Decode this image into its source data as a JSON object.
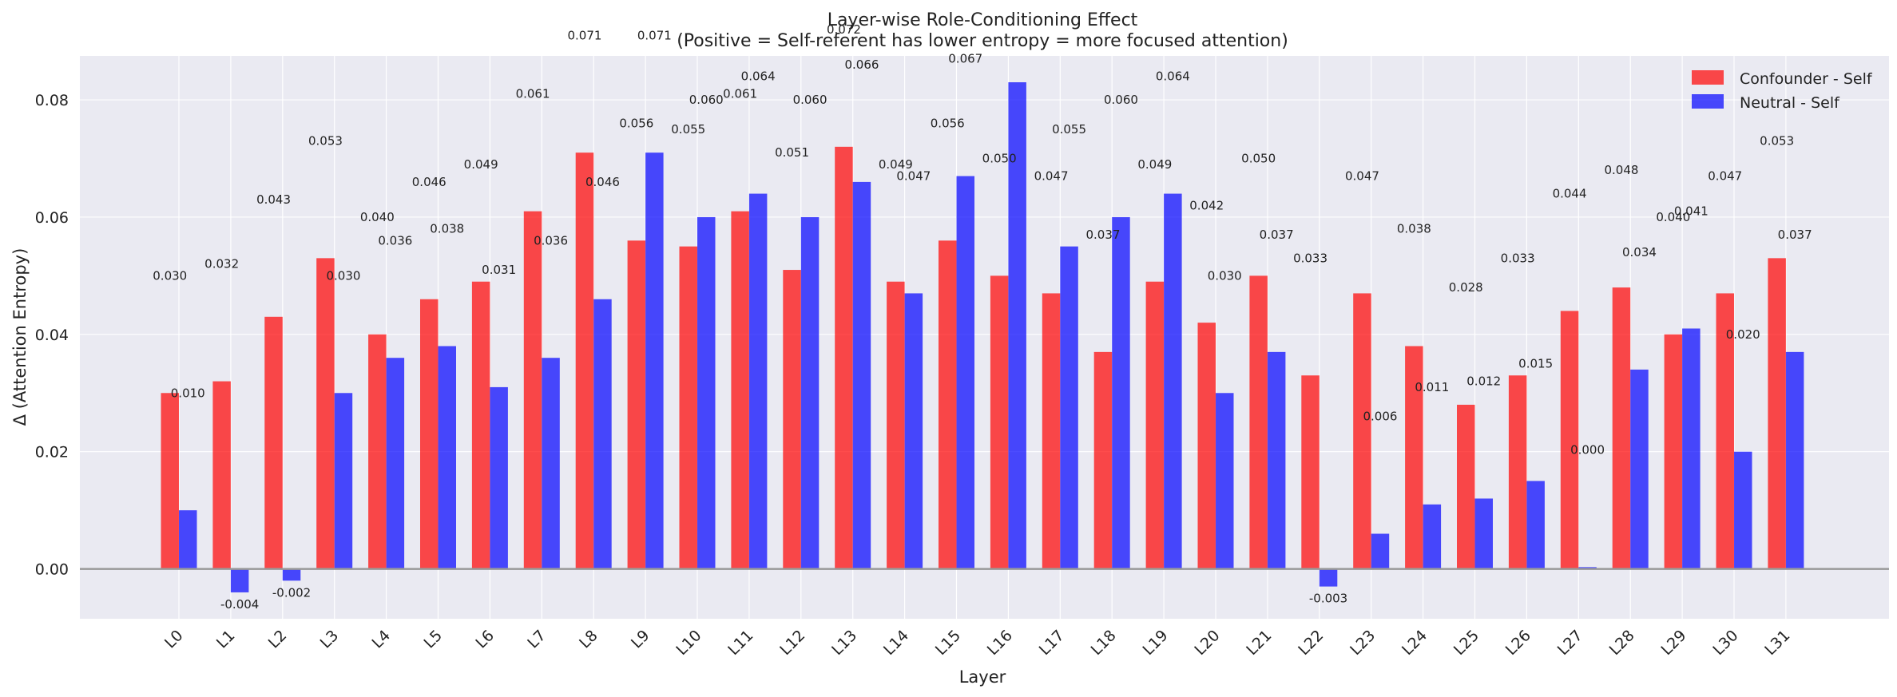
{
  "chart_data": {
    "type": "bar",
    "title": "Layer-wise Role-Conditioning Effect",
    "subtitle": "(Positive = Self-referent has lower entropy = more focused attention)",
    "xlabel": "Layer",
    "ylabel": "Δ (Attention Entropy)",
    "categories": [
      "L0",
      "L1",
      "L2",
      "L3",
      "L4",
      "L5",
      "L6",
      "L7",
      "L8",
      "L9",
      "L10",
      "L11",
      "L12",
      "L13",
      "L14",
      "L15",
      "L16",
      "L17",
      "L18",
      "L19",
      "L20",
      "L21",
      "L22",
      "L23",
      "L24",
      "L25",
      "L26",
      "L27",
      "L28",
      "L29",
      "L30",
      "L31"
    ],
    "series": [
      {
        "name": "Confounder - Self",
        "color": "#ff0000",
        "values": [
          0.03,
          0.032,
          0.043,
          0.053,
          0.04,
          0.046,
          0.049,
          0.061,
          0.071,
          0.056,
          0.055,
          0.061,
          0.051,
          0.072,
          0.049,
          0.056,
          0.05,
          0.047,
          0.037,
          0.049,
          0.042,
          0.05,
          0.033,
          0.047,
          0.038,
          0.028,
          0.033,
          0.044,
          0.048,
          0.04,
          0.047,
          0.053
        ],
        "labels": [
          "0.030",
          "0.032",
          "0.043",
          "0.053",
          "0.040",
          "0.046",
          "0.049",
          "0.061",
          "0.071",
          "0.056",
          "0.055",
          "0.061",
          "0.051",
          "0.072",
          "0.049",
          "0.056",
          "0.050",
          "0.047",
          "0.037",
          "0.049",
          "0.042",
          "0.050",
          "0.033",
          "0.047",
          "0.038",
          "0.028",
          "0.033",
          "0.044",
          "0.048",
          "0.040",
          "0.047",
          "0.053"
        ]
      },
      {
        "name": "Neutral - Self",
        "color": "#0000ff",
        "values": [
          0.01,
          -0.004,
          -0.002,
          0.03,
          0.036,
          0.038,
          0.031,
          0.036,
          0.046,
          0.071,
          0.06,
          0.064,
          0.06,
          0.066,
          0.047,
          0.067,
          0.083,
          0.055,
          0.06,
          0.064,
          0.03,
          0.037,
          -0.003,
          0.006,
          0.011,
          0.012,
          0.015,
          0.0003,
          0.034,
          0.041,
          0.02,
          0.037
        ],
        "labels": [
          "0.010",
          "-0.004",
          "-0.002",
          "0.030",
          "0.036",
          "0.038",
          "0.031",
          "0.036",
          "0.046",
          "0.071",
          "0.060",
          "0.064",
          "0.060",
          "0.066",
          "0.047",
          "0.067",
          "0.083",
          "0.055",
          "0.060",
          "0.064",
          "0.030",
          "0.037",
          "-0.003",
          "0.006",
          "0.011",
          "0.012",
          "0.015",
          "0.000",
          "0.034",
          "0.041",
          "0.020",
          "0.037"
        ]
      }
    ],
    "ylim": [
      -0.0085,
      0.0875
    ],
    "yticks": [
      "0.00",
      "0.02",
      "0.04",
      "0.06",
      "0.08"
    ],
    "grid": true,
    "legend_position": "top-right",
    "style": {
      "background": "#eaeaf2",
      "grid_color": "#ffffff",
      "zero_line_color": "#999999",
      "bar_opacity": 0.7
    }
  }
}
